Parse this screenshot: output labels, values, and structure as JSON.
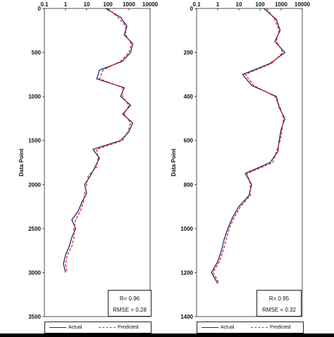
{
  "chart_data": [
    {
      "type": "line",
      "x_scale": "log",
      "xlim": [
        0.1,
        10000
      ],
      "x_ticks": [
        "0.1",
        "1",
        "10",
        "100",
        "1000",
        "10000"
      ],
      "ylim": [
        0,
        3500
      ],
      "y_inverted": true,
      "y_ticks": [
        "0",
        "500",
        "1000",
        "1500",
        "2000",
        "2500",
        "3000",
        "3500"
      ],
      "ylabel": "Data Point",
      "series": [
        {
          "name": "Actual",
          "color": "#1f2a6e",
          "style": "solid",
          "y": [
            0,
            100,
            200,
            300,
            400,
            500,
            600,
            700,
            800,
            900,
            1000,
            1100,
            1200,
            1300,
            1400,
            1500,
            1600,
            1700,
            1800,
            1900,
            2000,
            2100,
            2200,
            2300,
            2400,
            2500,
            2600,
            2700,
            2800,
            2900,
            3000
          ],
          "x": [
            80,
            400,
            800,
            600,
            1500,
            1200,
            500,
            40,
            30,
            600,
            400,
            1200,
            500,
            1500,
            1000,
            400,
            20,
            40,
            25,
            15,
            8,
            10,
            6,
            4,
            2,
            3,
            2,
            1.5,
            1,
            0.8,
            1
          ]
        },
        {
          "name": "Predicted",
          "color": "#e0242b",
          "style": "dashed",
          "y": [
            0,
            100,
            200,
            300,
            400,
            500,
            600,
            700,
            800,
            900,
            1000,
            1100,
            1200,
            1300,
            1400,
            1500,
            1600,
            1700,
            1800,
            1900,
            2000,
            2100,
            2200,
            2300,
            2400,
            2500,
            2600,
            2700,
            2800,
            2900,
            3000
          ],
          "x": [
            100,
            300,
            700,
            700,
            1300,
            1000,
            400,
            60,
            40,
            500,
            500,
            1000,
            600,
            1200,
            900,
            500,
            30,
            35,
            30,
            12,
            10,
            8,
            7,
            5,
            3,
            2.5,
            2.5,
            2,
            1.2,
            1,
            1.2
          ]
        }
      ],
      "annotation": {
        "r": "R= 0.96",
        "rmse": "RMSE = 0.28"
      }
    },
    {
      "type": "line",
      "x_scale": "log",
      "xlim": [
        0.1,
        10000
      ],
      "x_ticks": [
        "0.1",
        "1",
        "10",
        "100",
        "1000",
        "10000"
      ],
      "ylim": [
        0,
        1400
      ],
      "y_inverted": true,
      "y_ticks": [
        "0",
        "200",
        "400",
        "600",
        "800",
        "1000",
        "1200",
        "1400"
      ],
      "ylabel": "Data Point",
      "series": [
        {
          "name": "Actual",
          "color": "#1f2a6e",
          "style": "solid",
          "y": [
            0,
            50,
            100,
            150,
            200,
            250,
            300,
            350,
            400,
            450,
            500,
            550,
            600,
            650,
            700,
            750,
            800,
            850,
            900,
            950,
            1000,
            1050,
            1100,
            1150,
            1200,
            1250
          ],
          "x": [
            150,
            600,
            900,
            500,
            1500,
            300,
            15,
            40,
            600,
            800,
            1500,
            1000,
            800,
            700,
            300,
            20,
            40,
            30,
            10,
            5,
            3,
            2,
            1.5,
            1,
            0.5,
            1
          ]
        },
        {
          "name": "Predicted",
          "color": "#e0242b",
          "style": "dashed",
          "y": [
            0,
            50,
            100,
            150,
            200,
            250,
            300,
            350,
            400,
            450,
            500,
            550,
            600,
            650,
            700,
            750,
            800,
            850,
            900,
            950,
            1000,
            1050,
            1100,
            1150,
            1200,
            1250
          ],
          "x": [
            200,
            500,
            800,
            600,
            1200,
            350,
            20,
            50,
            500,
            900,
            1300,
            1100,
            900,
            600,
            400,
            25,
            35,
            35,
            12,
            6,
            3.5,
            2.5,
            1.8,
            1.2,
            0.6,
            1.2
          ]
        }
      ],
      "annotation": {
        "r": "R= 0.95",
        "rmse": "RMSE = 0.32"
      }
    }
  ]
}
